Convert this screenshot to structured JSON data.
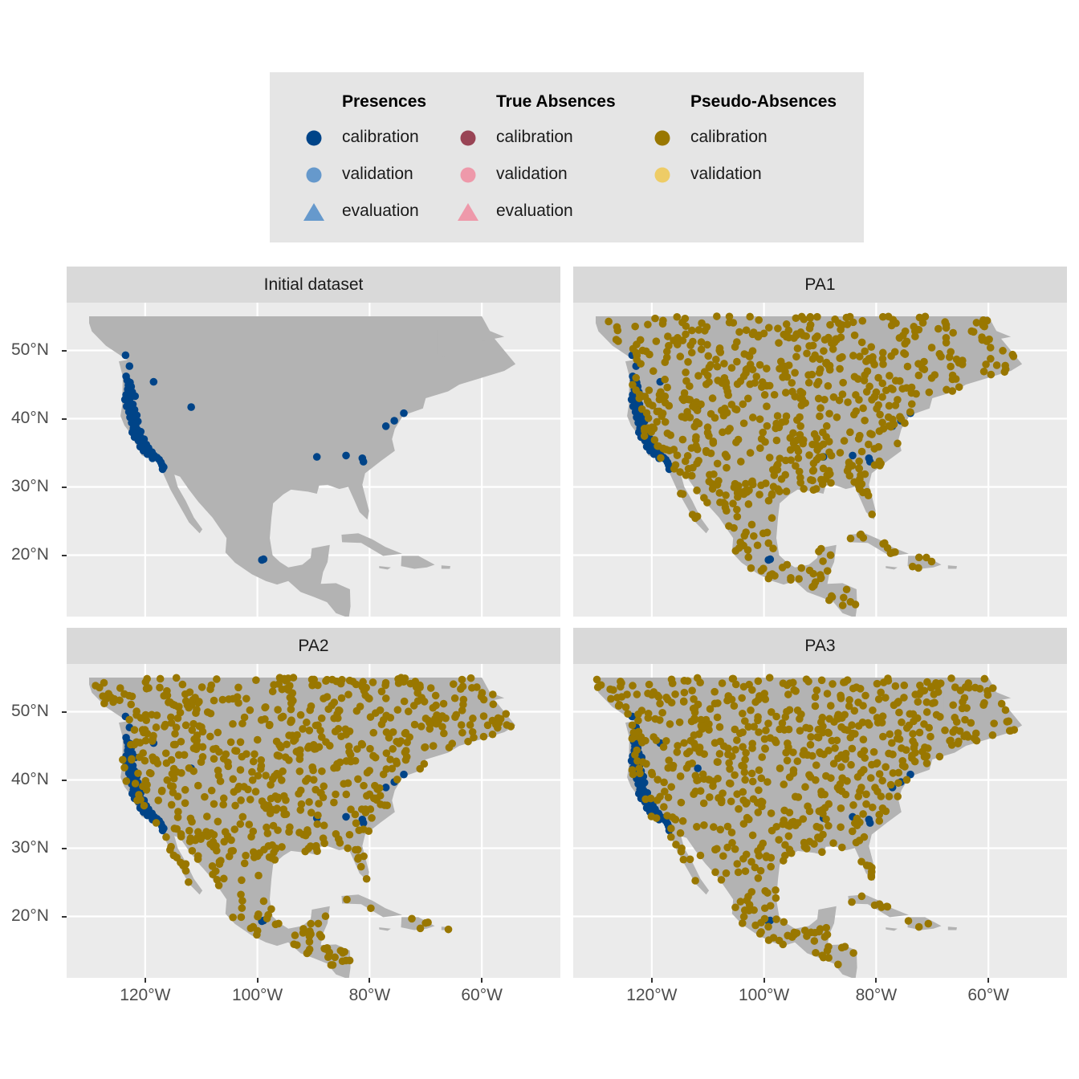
{
  "legend": {
    "groups": [
      {
        "title": "Presences",
        "items": [
          {
            "label": "calibration",
            "shape": "circle",
            "color": "#004488"
          },
          {
            "label": "validation",
            "shape": "circle",
            "color": "#6699cc"
          },
          {
            "label": "evaluation",
            "shape": "triangle",
            "color": "#6699cc"
          }
        ]
      },
      {
        "title": "True Absences",
        "items": [
          {
            "label": "calibration",
            "shape": "circle",
            "color": "#994455"
          },
          {
            "label": "validation",
            "shape": "circle",
            "color": "#ee99aa"
          },
          {
            "label": "evaluation",
            "shape": "triangle",
            "color": "#ee99aa"
          }
        ]
      },
      {
        "title": "Pseudo-Absences",
        "items": [
          {
            "label": "calibration",
            "shape": "circle",
            "color": "#997700"
          },
          {
            "label": "validation",
            "shape": "circle",
            "color": "#eecc66"
          }
        ]
      }
    ]
  },
  "panels": [
    {
      "title": "Initial dataset"
    },
    {
      "title": "PA1"
    },
    {
      "title": "PA2"
    },
    {
      "title": "PA3"
    }
  ],
  "axes": {
    "y_ticks": [
      "20°N",
      "30°N",
      "40°N",
      "50°N"
    ],
    "x_ticks": [
      "120°W",
      "100°W",
      "80°W",
      "60°W"
    ]
  },
  "chart_data": {
    "type": "scatter",
    "xlim": [
      -134,
      -46
    ],
    "ylim": [
      11,
      57
    ],
    "x_ticks": [
      -120,
      -100,
      -80,
      -60
    ],
    "y_ticks": [
      20,
      30,
      40,
      50
    ],
    "colors": {
      "land": "#b3b3b3",
      "panel_bg": "#ebebeb",
      "gridline": "#ffffff",
      "presence_calibration": "#004488",
      "pseudo_absence_calibration": "#997700"
    },
    "presences": [
      [
        -123.5,
        49.3
      ],
      [
        -122.8,
        47.7
      ],
      [
        -123.4,
        46.2
      ],
      [
        -123.2,
        45.6
      ],
      [
        -122.7,
        45.3
      ],
      [
        -123.0,
        44.9
      ],
      [
        -122.5,
        44.7
      ],
      [
        -123.1,
        44.3
      ],
      [
        -122.3,
        43.9
      ],
      [
        -123.4,
        43.5
      ],
      [
        -122.6,
        43.1
      ],
      [
        -121.8,
        43.3
      ],
      [
        -123.6,
        42.8
      ],
      [
        -122.8,
        42.4
      ],
      [
        -122.2,
        42.1
      ],
      [
        -123.3,
        41.8
      ],
      [
        -122.6,
        41.6
      ],
      [
        -121.9,
        41.3
      ],
      [
        -122.9,
        41.0
      ],
      [
        -122.3,
        40.7
      ],
      [
        -121.5,
        40.5
      ],
      [
        -122.7,
        40.2
      ],
      [
        -121.9,
        39.9
      ],
      [
        -121.3,
        39.6
      ],
      [
        -122.4,
        39.4
      ],
      [
        -121.7,
        39.0
      ],
      [
        -122.1,
        38.6
      ],
      [
        -121.4,
        38.4
      ],
      [
        -120.8,
        38.1
      ],
      [
        -122.3,
        38.0
      ],
      [
        -121.6,
        37.7
      ],
      [
        -120.9,
        37.4
      ],
      [
        -121.9,
        37.3
      ],
      [
        -120.2,
        37.0
      ],
      [
        -121.2,
        36.8
      ],
      [
        -120.5,
        36.4
      ],
      [
        -119.8,
        36.2
      ],
      [
        -120.9,
        35.9
      ],
      [
        -119.4,
        35.7
      ],
      [
        -120.3,
        35.3
      ],
      [
        -118.8,
        35.1
      ],
      [
        -119.6,
        34.8
      ],
      [
        -118.4,
        34.6
      ],
      [
        -117.9,
        34.3
      ],
      [
        -118.7,
        34.2
      ],
      [
        -117.5,
        34.0
      ],
      [
        -117.2,
        33.6
      ],
      [
        -117.0,
        33.2
      ],
      [
        -116.7,
        32.9
      ],
      [
        -116.9,
        32.6
      ],
      [
        -118.5,
        45.4
      ],
      [
        -111.8,
        41.7
      ],
      [
        -98.9,
        19.4
      ],
      [
        -99.2,
        19.3
      ],
      [
        -89.4,
        34.4
      ],
      [
        -84.2,
        34.6
      ],
      [
        -81.3,
        34.2
      ],
      [
        -81.1,
        33.7
      ],
      [
        -77.1,
        38.9
      ],
      [
        -75.6,
        39.7
      ],
      [
        -73.9,
        40.8
      ]
    ],
    "land_polygons": [
      [
        [
          -130,
          55
        ],
        [
          -60,
          55
        ],
        [
          -58,
          52
        ],
        [
          -54,
          48
        ],
        [
          -56,
          47
        ],
        [
          -60,
          46
        ],
        [
          -64,
          45
        ],
        [
          -66,
          44
        ],
        [
          -70,
          43
        ],
        [
          -70.5,
          41.5
        ],
        [
          -74,
          40.5
        ],
        [
          -75.5,
          38.5
        ],
        [
          -76,
          37
        ],
        [
          -75.5,
          35.3
        ],
        [
          -78,
          33.8
        ],
        [
          -80.8,
          32
        ],
        [
          -81.3,
          30.3
        ],
        [
          -80.1,
          26.5
        ],
        [
          -80.4,
          25.2
        ],
        [
          -81.8,
          26.3
        ],
        [
          -82.7,
          28
        ],
        [
          -83.8,
          30
        ],
        [
          -85.4,
          29.7
        ],
        [
          -87.5,
          30.3
        ],
        [
          -89,
          30.2
        ],
        [
          -89.4,
          29
        ],
        [
          -91,
          29.3
        ],
        [
          -94,
          29.6
        ],
        [
          -95.4,
          28.9
        ],
        [
          -97.2,
          27.6
        ],
        [
          -97.5,
          25.5
        ],
        [
          -97.8,
          22.5
        ],
        [
          -97.3,
          20
        ],
        [
          -96,
          19
        ],
        [
          -94.5,
          18.2
        ],
        [
          -92,
          18.6
        ],
        [
          -90.5,
          19.6
        ],
        [
          -90.3,
          21
        ],
        [
          -87.1,
          21.5
        ],
        [
          -87.5,
          19
        ],
        [
          -88.3,
          17.5
        ],
        [
          -88.7,
          15.8
        ],
        [
          -86,
          15.9
        ],
        [
          -83.5,
          15
        ],
        [
          -83.4,
          12.5
        ],
        [
          -83.7,
          10.8
        ],
        [
          -86,
          11.5
        ],
        [
          -87.6,
          13.1
        ],
        [
          -90,
          13.9
        ],
        [
          -92.3,
          14.6
        ],
        [
          -94.5,
          16.2
        ],
        [
          -96.5,
          15.7
        ],
        [
          -98.5,
          16.2
        ],
        [
          -101,
          17.2
        ],
        [
          -104,
          18.9
        ],
        [
          -105.7,
          20.4
        ],
        [
          -105.5,
          22.5
        ],
        [
          -108,
          25.5
        ],
        [
          -110.5,
          27.8
        ],
        [
          -112.2,
          29.6
        ],
        [
          -113.8,
          31.5
        ],
        [
          -114.8,
          31.8
        ],
        [
          -114.2,
          30
        ],
        [
          -112.8,
          28
        ],
        [
          -111.3,
          25.5
        ],
        [
          -109.8,
          23.8
        ],
        [
          -110.3,
          23.2
        ],
        [
          -112.2,
          24.8
        ],
        [
          -114.2,
          27.7
        ],
        [
          -115.5,
          29.6
        ],
        [
          -116.7,
          31.8
        ],
        [
          -117.3,
          33.2
        ],
        [
          -118.5,
          34
        ],
        [
          -120.6,
          34.6
        ],
        [
          -121.9,
          36.6
        ],
        [
          -122.5,
          37.7
        ],
        [
          -123.7,
          39
        ],
        [
          -124.4,
          40.4
        ],
        [
          -124.1,
          42
        ],
        [
          -124,
          46.2
        ],
        [
          -124.7,
          48.4
        ],
        [
          -123.2,
          48.6
        ],
        [
          -127,
          50.7
        ],
        [
          -129.5,
          52.8
        ],
        [
          -130,
          54
        ]
      ],
      [
        [
          -85,
          23
        ],
        [
          -82,
          23.2
        ],
        [
          -79.5,
          22.3
        ],
        [
          -77.2,
          21.2
        ],
        [
          -74.2,
          20.2
        ],
        [
          -77.6,
          19.9
        ],
        [
          -81.5,
          21.8
        ],
        [
          -84.9,
          21.9
        ]
      ],
      [
        [
          -74.3,
          19.9
        ],
        [
          -71.3,
          19.9
        ],
        [
          -68.4,
          18.6
        ],
        [
          -69.8,
          18.2
        ],
        [
          -72,
          18
        ],
        [
          -74.4,
          18.4
        ]
      ],
      [
        [
          -78.3,
          18.4
        ],
        [
          -76.2,
          18.2
        ],
        [
          -76.8,
          17.9
        ],
        [
          -78.3,
          18.1
        ]
      ],
      [
        [
          -67.2,
          18.5
        ],
        [
          -65.6,
          18.4
        ],
        [
          -65.7,
          18
        ],
        [
          -67.2,
          18
        ]
      ],
      [
        [
          -66.7,
          55
        ],
        [
          -62,
          55
        ],
        [
          -59,
          53
        ],
        [
          -56,
          52
        ],
        [
          -60.4,
          51.3
        ],
        [
          -64,
          50
        ],
        [
          -66.8,
          49
        ],
        [
          -68,
          49.5
        ],
        [
          -68,
          53
        ]
      ]
    ]
  }
}
